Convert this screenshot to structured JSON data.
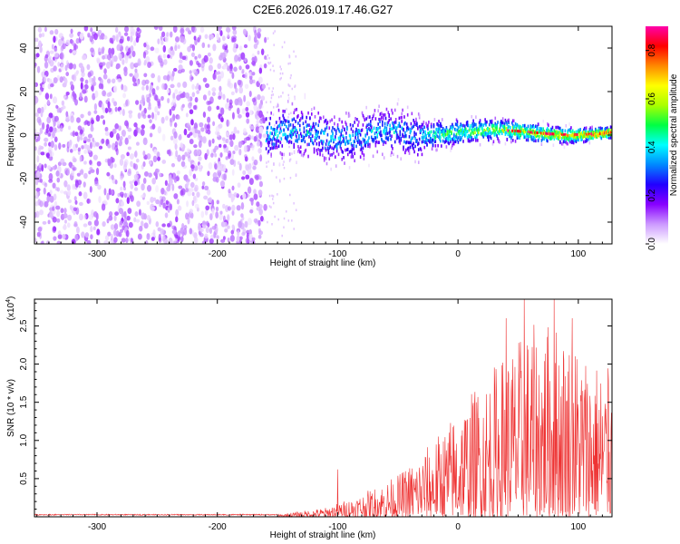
{
  "chart_data": [
    {
      "type": "heatmap",
      "title": "C2E6.2026.019.17.46.G27",
      "xlabel": "Height of straight line (km)",
      "ylabel": "Frequency (Hz)",
      "xlim": [
        -352,
        128
      ],
      "ylim": [
        -50,
        50
      ],
      "xticks": [
        -300,
        -200,
        -100,
        0,
        100
      ],
      "xtick_labels": [
        "-300",
        "-200",
        "-100",
        "0",
        "100"
      ],
      "yticks": [
        -40,
        -20,
        0,
        20,
        40
      ],
      "ytick_labels": [
        "-40",
        "-20",
        "0",
        "20",
        "40"
      ],
      "colorbar": {
        "label": "Normalized spectral amplitude",
        "range": [
          0,
          0.9
        ],
        "ticks": [
          0.0,
          0.2,
          0.4,
          0.6,
          0.8
        ],
        "tick_labels": [
          "0.0",
          "0.2",
          "0.4",
          "0.6",
          "0.8"
        ],
        "colors": [
          "#ffffff",
          "#cc99ff",
          "#8800ff",
          "#2200ff",
          "#0088ff",
          "#00ffff",
          "#00ff44",
          "#aaff00",
          "#ffff00",
          "#ff8800",
          "#ff0000",
          "#ff00aa"
        ]
      },
      "regions": [
        {
          "name": "noise",
          "x_range": [
            -352,
            -160
          ],
          "freq_range": [
            -50,
            50
          ],
          "amplitude": 0.05
        },
        {
          "name": "transition",
          "x_range": [
            -160,
            -135
          ],
          "freq_range": [
            -50,
            50
          ],
          "amplitude": 0.02
        },
        {
          "name": "signal",
          "x_range": [
            -160,
            128
          ],
          "center_freq": 0,
          "amplitude_range": [
            0.15,
            0.9
          ]
        }
      ]
    },
    {
      "type": "line",
      "xlabel": "Height of straight line (km)",
      "ylabel": "SNR (10 * v/v)",
      "scale_label": "(x10",
      "scale_exp": "4",
      "xlim": [
        -352,
        128
      ],
      "ylim": [
        0,
        2.85
      ],
      "xticks": [
        -300,
        -200,
        -100,
        0,
        100
      ],
      "xtick_labels": [
        "-300",
        "-200",
        "-100",
        "0",
        "100"
      ],
      "yticks": [
        0.5,
        1.0,
        1.5,
        2.0,
        2.5
      ],
      "ytick_labels": [
        "0.5",
        "1.0",
        "1.5",
        "2.0",
        "2.5"
      ],
      "color": "#ee3333",
      "envelope": {
        "x": [
          -352,
          -150,
          -110,
          -80,
          -50,
          -30,
          -10,
          0,
          20,
          40,
          60,
          80,
          100,
          128
        ],
        "y": [
          0.02,
          0.03,
          0.12,
          0.3,
          0.55,
          0.85,
          1.2,
          1.45,
          1.8,
          2.2,
          2.5,
          2.6,
          2.3,
          1.9
        ]
      },
      "peaks": [
        {
          "x": -100,
          "y": 0.62
        },
        {
          "x": 40,
          "y": 2.6
        },
        {
          "x": 55,
          "y": 2.85
        },
        {
          "x": 80,
          "y": 2.85
        },
        {
          "x": 95,
          "y": 2.6
        },
        {
          "x": 125,
          "y": 1.78
        }
      ]
    }
  ]
}
